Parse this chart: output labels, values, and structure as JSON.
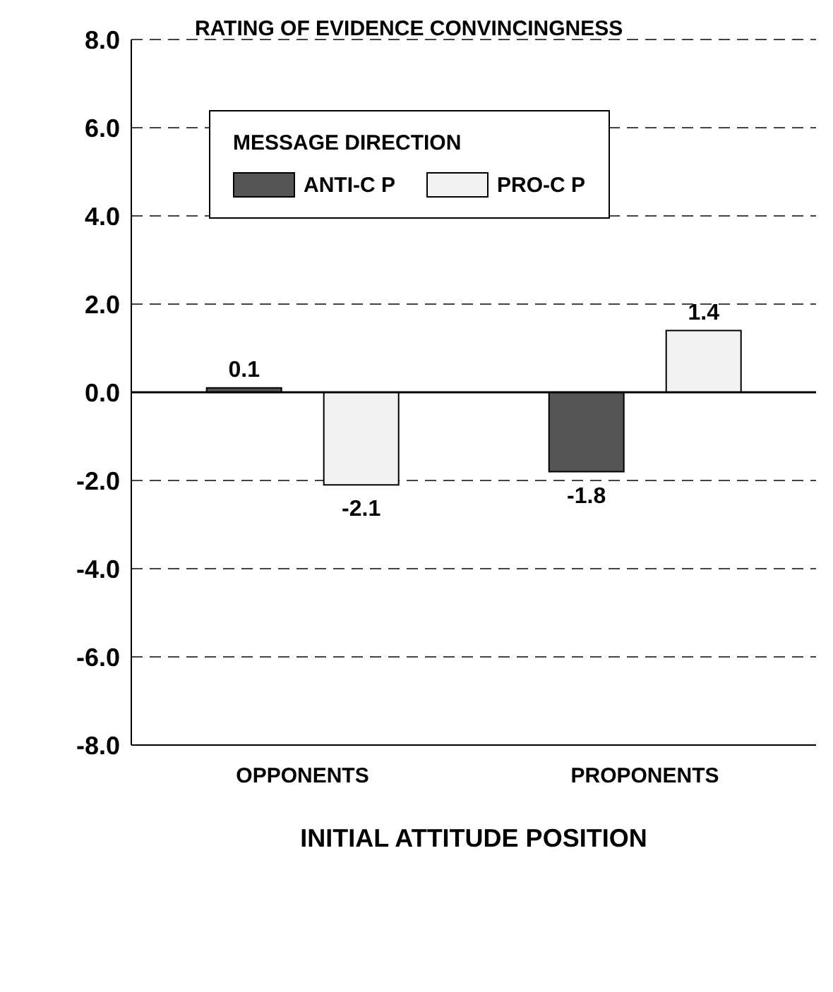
{
  "chart_data": {
    "type": "bar",
    "title": "RATING OF EVIDENCE CONVINCINGNESS",
    "xlabel": "INITIAL ATTITUDE POSITION",
    "legend_title": "MESSAGE DIRECTION",
    "categories": [
      "OPPONENTS",
      "PROPONENTS"
    ],
    "series": [
      {
        "name": "ANTI-C P",
        "color": "#555555",
        "values": [
          0.1,
          -1.8
        ]
      },
      {
        "name": "PRO-C P",
        "color": "#f2f2f2",
        "values": [
          -2.1,
          1.4
        ]
      }
    ],
    "ylim": [
      -8,
      8
    ],
    "yticks": [
      {
        "value": -8,
        "label": "-8.0"
      },
      {
        "value": -6,
        "label": "-6.0"
      },
      {
        "value": -4,
        "label": "-4.0"
      },
      {
        "value": -2,
        "label": "-2.0"
      },
      {
        "value": 0,
        "label": "0.0"
      },
      {
        "value": 2,
        "label": "2.0"
      },
      {
        "value": 4,
        "label": "4.0"
      },
      {
        "value": 6,
        "label": "6.0"
      },
      {
        "value": 8,
        "label": "8.0"
      }
    ],
    "grid": "y",
    "legend": "top left",
    "data_labels": true,
    "ref_lines": [
      {
        "axis": "y",
        "value": 0,
        "label": null,
        "color": "#000000",
        "line_style": "solid"
      }
    ]
  }
}
